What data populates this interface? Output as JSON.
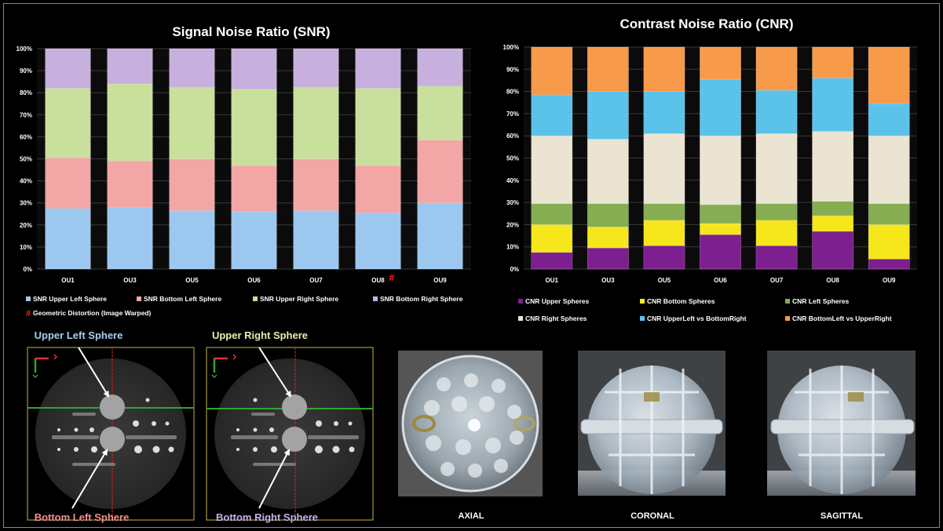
{
  "colors": {
    "snr": [
      "#9cc8ef",
      "#f2a6a6",
      "#c9df9c",
      "#c7b0dd"
    ],
    "cnr": [
      "#7e1f8f",
      "#f5e71c",
      "#86ad52",
      "#ece4d2",
      "#5bc3ea",
      "#f79a4a"
    ],
    "geo_marker": "#ff2020",
    "upper_left_label": "#a9cdf2",
    "upper_right_label": "#e8edb0",
    "bottom_left_label": "#f2908e",
    "bottom_right_label": "#c6b4e6"
  },
  "chart_data": [
    {
      "type": "bar",
      "stacked": true,
      "title": "Signal Noise Ratio (SNR)",
      "categories": [
        "OU1",
        "OU3",
        "OU5",
        "OU6",
        "OU7",
        "OU8",
        "OU9"
      ],
      "ylim": [
        0,
        100
      ],
      "yticks": [
        "0%",
        "10%",
        "20%",
        "30%",
        "40%",
        "50%",
        "60%",
        "70%",
        "80%",
        "90%",
        "100%"
      ],
      "grid": true,
      "legend_position": "bottom",
      "series": [
        {
          "name": "SNR Upper Left Sphere",
          "values": [
            27.5,
            28,
            26.5,
            26,
            26.5,
            25.5,
            30
          ]
        },
        {
          "name": "SNR Bottom Left Sphere",
          "values": [
            23,
            21,
            23.5,
            21,
            23.5,
            21.5,
            28.5
          ]
        },
        {
          "name": "SNR Upper Right Sphere",
          "values": [
            31.5,
            35,
            32.5,
            34.5,
            32.5,
            35,
            24.5
          ]
        },
        {
          "name": "SNR Bottom Right Sphere",
          "values": [
            18,
            16,
            17.5,
            18.5,
            17.5,
            18,
            17
          ]
        }
      ],
      "annotation": {
        "category": "OU8",
        "marker": "#",
        "legend": "Geometric Distortion (Image Warped)"
      }
    },
    {
      "type": "bar",
      "stacked": true,
      "title": "Contrast Noise Ratio (CNR)",
      "categories": [
        "OU1",
        "OU3",
        "OU5",
        "OU6",
        "OU7",
        "OU8",
        "OU9"
      ],
      "ylim": [
        0,
        100
      ],
      "yticks": [
        "0%",
        "10%",
        "20%",
        "30%",
        "40%",
        "50%",
        "60%",
        "70%",
        "80%",
        "90%",
        "100%"
      ],
      "grid": true,
      "legend_position": "bottom",
      "series": [
        {
          "name": "CNR Upper Spheres",
          "values": [
            7.5,
            9.5,
            10.5,
            15.5,
            10.5,
            17,
            4.5
          ]
        },
        {
          "name": "CNR Bottom Spheres",
          "values": [
            12.5,
            9.5,
            11.5,
            5,
            11.5,
            7,
            15.5
          ]
        },
        {
          "name": "CNR Left Spheres",
          "values": [
            9.5,
            10.5,
            7.5,
            8.5,
            7.5,
            6.5,
            9.5
          ]
        },
        {
          "name": "CNR Right Spheres",
          "values": [
            30.5,
            29,
            31.5,
            31,
            31.5,
            31.5,
            30.5
          ]
        },
        {
          "name": "CNR UpperLeft vs BottomRight",
          "values": [
            18.5,
            21.5,
            19,
            25.5,
            19.5,
            24,
            14.5
          ]
        },
        {
          "name": "CNR BottomLeft vs UpperRight",
          "values": [
            21.5,
            20,
            20,
            14.5,
            19.5,
            14,
            25.5
          ]
        }
      ]
    }
  ],
  "phantom_slices": {
    "left": {
      "top_label": "Upper Left Sphere",
      "bottom_label": "Bottom Left Sphere"
    },
    "right": {
      "top_label": "Upper Right Sphere",
      "bottom_label": "Bottom Right Sphere"
    }
  },
  "photos": [
    {
      "name": "axial",
      "caption": "AXIAL"
    },
    {
      "name": "coronal",
      "caption": "CORONAL"
    },
    {
      "name": "sagittal",
      "caption": "SAGITTAL"
    }
  ]
}
